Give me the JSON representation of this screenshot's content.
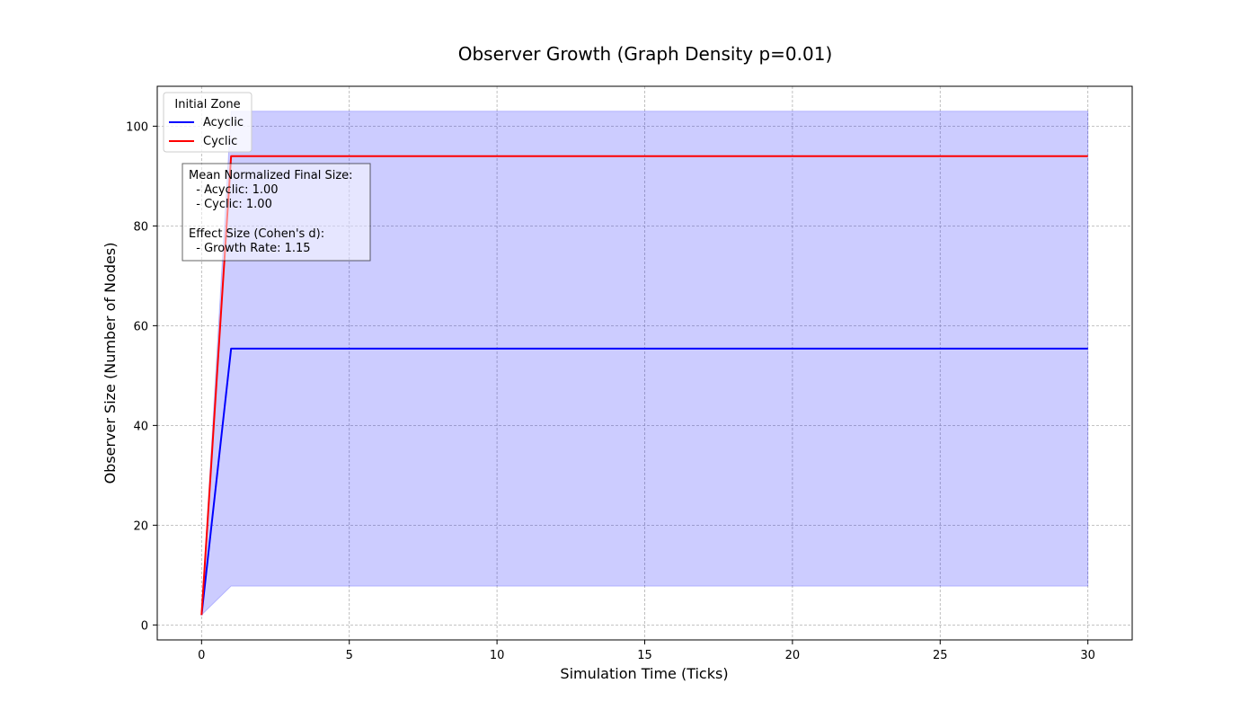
{
  "chart_data": {
    "type": "line",
    "title": "Observer Growth (Graph Density p=0.01)",
    "xlabel": "Simulation Time (Ticks)",
    "ylabel": "Observer Size (Number of Nodes)",
    "xlim": [
      -1.5,
      31.5
    ],
    "ylim": [
      -3,
      108
    ],
    "xticks": [
      0,
      5,
      10,
      15,
      20,
      25,
      30
    ],
    "yticks": [
      0,
      20,
      40,
      60,
      80,
      100
    ],
    "grid": true,
    "legend": {
      "title": "Initial Zone",
      "placement": "top-left",
      "entries": [
        "Acyclic",
        "Cyclic"
      ]
    },
    "series": [
      {
        "name": "Acyclic",
        "color": "#0000ff",
        "x": [
          0,
          1,
          30
        ],
        "y": [
          2,
          55.4,
          55.4
        ],
        "band": {
          "x": [
            0,
            1,
            30
          ],
          "lower": [
            2,
            7.8,
            7.8
          ],
          "upper": [
            2,
            103,
            103
          ],
          "color": "#0000ff",
          "opacity": 0.2
        }
      },
      {
        "name": "Cyclic",
        "color": "#ff0000",
        "x": [
          0,
          1,
          30
        ],
        "y": [
          2,
          94,
          94
        ]
      }
    ],
    "annotation": {
      "lines": [
        "Mean Normalized Final Size:",
        "  - Acyclic: 1.00",
        "  - Cyclic: 1.00",
        "",
        "Effect Size (Cohen's d):",
        "  - Growth Rate: 1.15"
      ]
    }
  }
}
